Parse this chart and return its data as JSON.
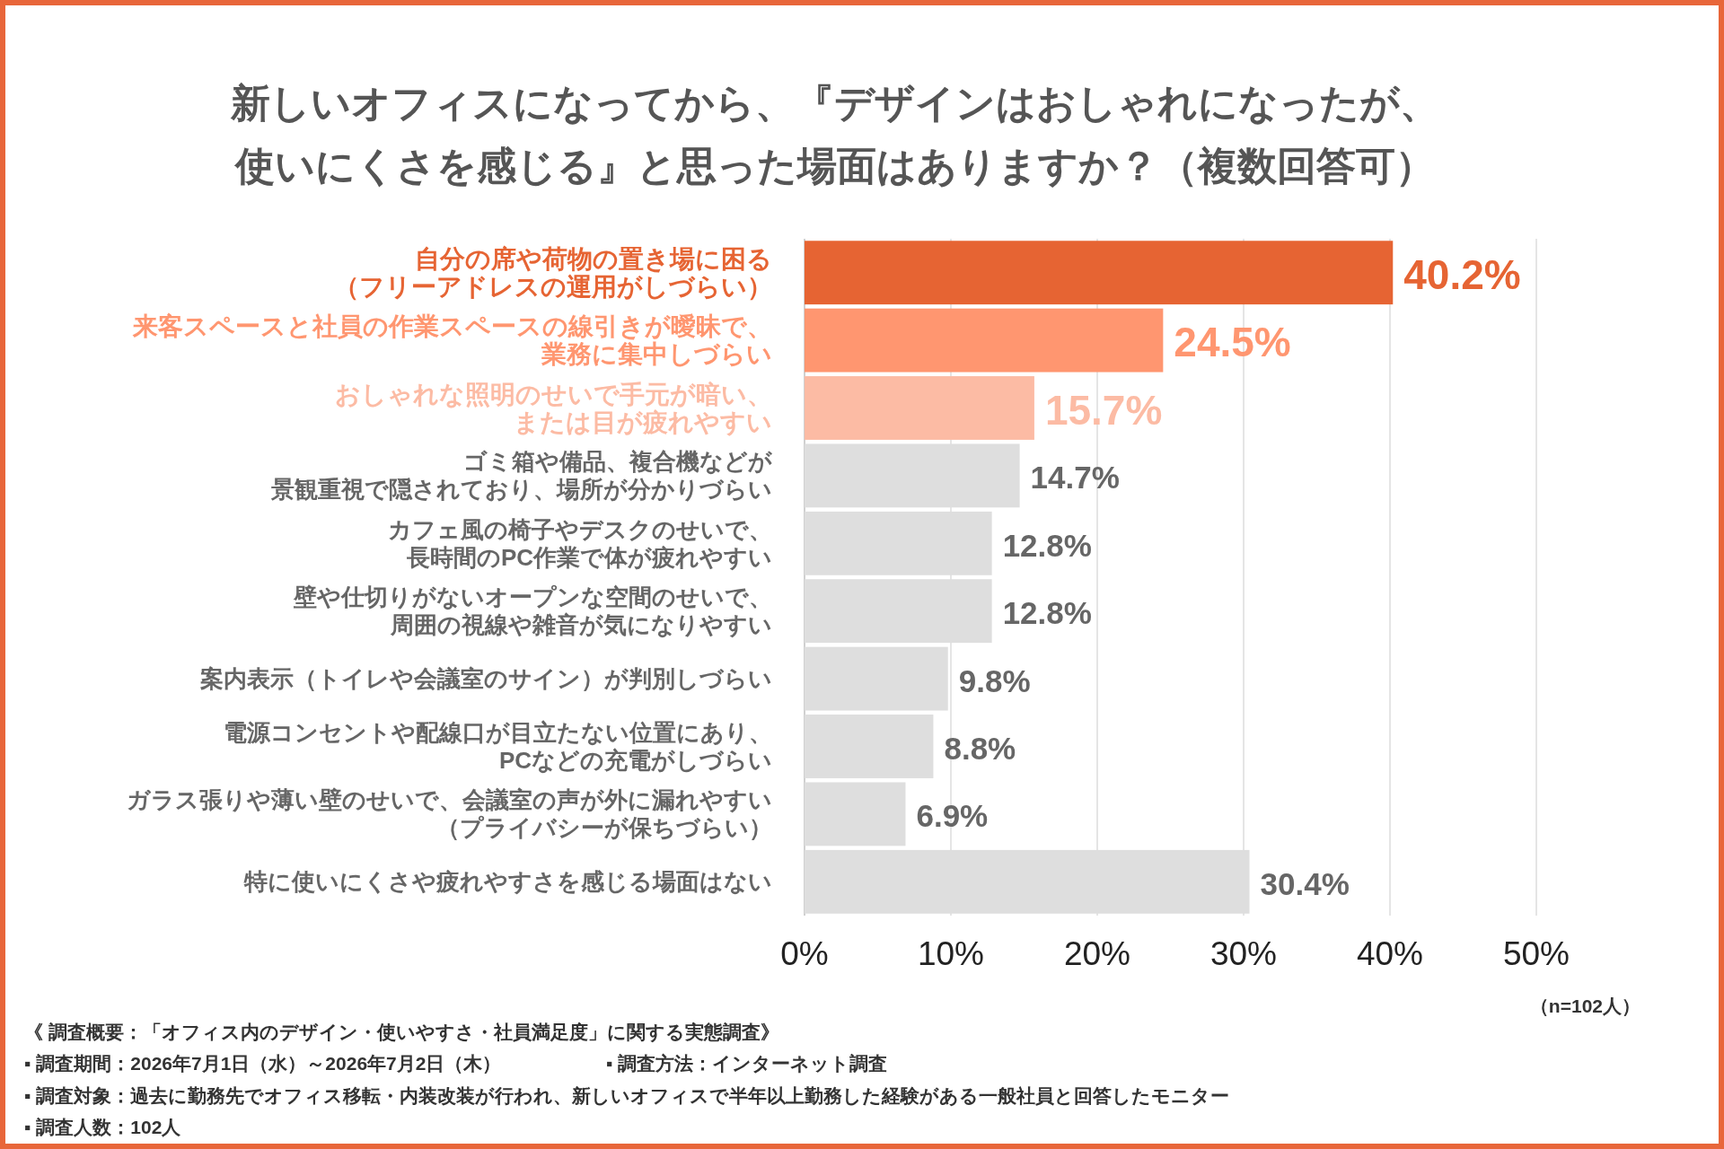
{
  "chart_data": {
    "type": "bar",
    "orientation": "horizontal",
    "title": "新しいオフィスになってから、『デザインはおしゃれになったが、使いにくさを感じる』と思った場面はありますか？（複数回答可）",
    "categories": [
      "自分の席や荷物の置き場に困る（フリーアドレスの運用がしづらい）",
      "来客スペースと社員の作業スペースの線引きが曖昧で、業務に集中しづらい",
      "おしゃれな照明のせいで手元が暗い、または目が疲れやすい",
      "ゴミ箱や備品、複合機などが景観重視で隠されており、場所が分かりづらい",
      "カフェ風の椅子やデスクのせいで、長時間のPC作業で体が疲れやすい",
      "壁や仕切りがないオープンな空間のせいで、周囲の視線や雑音が気になりやすい",
      "案内表示（トイレや会議室のサイン）が判別しづらい",
      "電源コンセントや配線口が目立たない位置にあり、PCなどの充電がしづらい",
      "ガラス張りや薄い壁のせいで、会議室の声が外に漏れやすい（プライバシーが保ちづらい）",
      "特に使いにくさや疲れやすさを感じる場面はない"
    ],
    "values": [
      40.2,
      24.5,
      15.7,
      14.7,
      12.8,
      12.8,
      9.8,
      8.8,
      6.9,
      30.4
    ],
    "colors": [
      "#e66433",
      "#ff9670",
      "#fcbba4",
      "#dedede",
      "#dedede",
      "#dedede",
      "#dedede",
      "#dedede",
      "#dedede",
      "#dedede"
    ],
    "value_labels": [
      "40.2%",
      "24.5%",
      "15.7%",
      "14.7%",
      "12.8%",
      "12.8%",
      "9.8%",
      "8.8%",
      "6.9%",
      "30.4%"
    ],
    "xlim": [
      0,
      50
    ],
    "xticks": [
      {
        "value": 0,
        "label": "0%"
      },
      {
        "value": 10,
        "label": "10%"
      },
      {
        "value": 20,
        "label": "20%"
      },
      {
        "value": 30,
        "label": "30%"
      },
      {
        "value": 40,
        "label": "40%"
      },
      {
        "value": 50,
        "label": "50%"
      }
    ],
    "grid": "x",
    "annotations": [
      "（n=102人）",
      "《 調査概要：「オフィス内のデザイン・使いやすさ・社員満足度」に関する実態調査》",
      "▪ 調査期間：2026年7月1日（水）～2026年7月2日（木）",
      "▪ 調査方法：インターネット調査",
      "▪ 調査対象：過去に勤務先でオフィス移転・内装改装が行われ、新しいオフィスで半年以上勤務した経験がある一般社員と回答したモニター",
      "▪ 調査人数：102人"
    ]
  }
}
